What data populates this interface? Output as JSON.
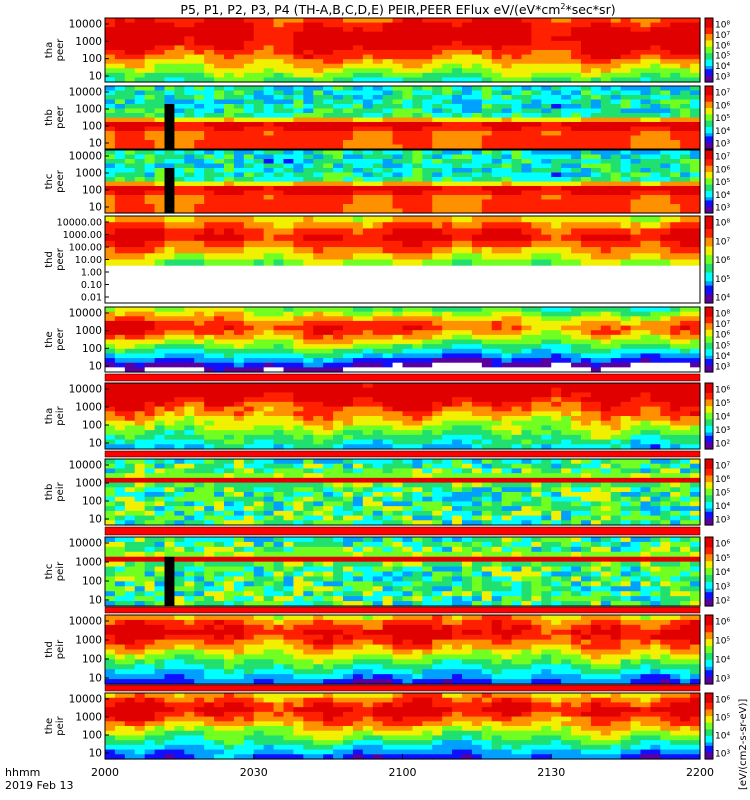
{
  "title": "P5, P1, P2, P3, P4 (TH-A,B,C,D,E) PEIR,PEER EFlux eV/(eV*cm",
  "title_sup": "2",
  "title_end": "*sec*sr)",
  "footer": {
    "time_label": "hhmm",
    "date_label": "2019 Feb 13"
  },
  "colorbar_unit_label": "[eV/(cm2-s-sr-eV)]",
  "colors": {
    "colormap": [
      "#5a00a0",
      "#1010ff",
      "#00a0ff",
      "#00ffff",
      "#20e070",
      "#70ff20",
      "#f0f000",
      "#ff9000",
      "#ff2000",
      "#e00000"
    ],
    "flag_red": "#ff0000",
    "frame": "#000000"
  },
  "chart_data": {
    "type": "heatmap",
    "x_axis": {
      "ticks": [
        "2000",
        "2030",
        "2100",
        "2130",
        "2200"
      ],
      "range": [
        "20:00",
        "22:00"
      ]
    },
    "panels": [
      {
        "probe": "tha",
        "species": "peer",
        "ylabel": [
          "tha",
          "peer"
        ],
        "y_ticks": [
          "10000",
          "1000",
          "100",
          "10"
        ],
        "cb_ticks": [
          "10⁸",
          "10⁷",
          "10⁶",
          "10⁵",
          "10⁴",
          "10³"
        ],
        "profile": "electron_strong"
      },
      {
        "probe": "thb",
        "species": "peer",
        "ylabel": [
          "thb",
          "peer"
        ],
        "y_ticks": [
          "10000",
          "1000",
          "100",
          "10"
        ],
        "cb_ticks": [
          "10⁷",
          "10⁶",
          "10⁵",
          "10⁴",
          "10³"
        ],
        "profile": "electron_low",
        "gap_window": [
          11.5,
          14.0
        ]
      },
      {
        "probe": "thc",
        "species": "peer",
        "ylabel": [
          "thc",
          "peer"
        ],
        "y_ticks": [
          "10000",
          "1000",
          "100",
          "10"
        ],
        "cb_ticks": [
          "10⁷",
          "10⁶",
          "10⁵",
          "10⁴",
          "10³"
        ],
        "profile": "electron_low",
        "gap_window": [
          11.0,
          13.5
        ]
      },
      {
        "probe": "thd",
        "species": "peer",
        "ylabel": [
          "thd",
          "peer"
        ],
        "y_ticks": [
          "10000.00",
          "1000.00",
          "100.00",
          "10.00",
          "1.00",
          "0.10",
          "0.01"
        ],
        "cb_ticks": [
          "10⁸",
          "10⁷",
          "10⁶",
          "10⁵",
          "10⁴"
        ],
        "profile": "electron_partial"
      },
      {
        "probe": "the",
        "species": "peer",
        "ylabel": [
          "the",
          "peer"
        ],
        "y_ticks": [
          "10000",
          "1000",
          "100",
          "10"
        ],
        "cb_ticks": [
          "10⁸",
          "10⁷",
          "10⁶",
          "10⁵",
          "10⁴",
          "10³"
        ],
        "profile": "electron_mid"
      },
      {
        "probe": "tha",
        "species": "peir",
        "ylabel": [
          "tha",
          "peir"
        ],
        "y_ticks": [
          "10000",
          "1000",
          "100",
          "10"
        ],
        "cb_ticks": [
          "10⁶",
          "10⁵",
          "10⁴",
          "10³",
          "10²"
        ],
        "profile": "ion_strong"
      },
      {
        "probe": "thb",
        "species": "peir",
        "ylabel": [
          "thb",
          "peir"
        ],
        "y_ticks": [
          "10000",
          "1000",
          "100",
          "10"
        ],
        "cb_ticks": [
          "10⁷",
          "10⁶",
          "10⁵",
          "10⁴",
          "10³"
        ],
        "profile": "ion_low"
      },
      {
        "probe": "thc",
        "species": "peir",
        "ylabel": [
          "thc",
          "peir"
        ],
        "y_ticks": [
          "10000",
          "1000",
          "100",
          "10"
        ],
        "cb_ticks": [
          "10⁶",
          "10⁵",
          "10⁴",
          "10³",
          "10²"
        ],
        "profile": "ion_low",
        "gap_window": [
          12.0,
          14.0
        ]
      },
      {
        "probe": "thd",
        "species": "peir",
        "ylabel": [
          "thd",
          "peir"
        ],
        "y_ticks": [
          "10000",
          "1000",
          "100",
          "10"
        ],
        "cb_ticks": [
          "10⁶",
          "10⁵",
          "10⁴",
          "10³"
        ],
        "profile": "ion_mid"
      },
      {
        "probe": "the",
        "species": "peir",
        "ylabel": [
          "the",
          "peir"
        ],
        "y_ticks": [
          "10000",
          "1000",
          "100",
          "10"
        ],
        "cb_ticks": [
          "10⁶",
          "10⁵",
          "10⁴",
          "10³"
        ],
        "profile": "ion_mid"
      }
    ]
  }
}
